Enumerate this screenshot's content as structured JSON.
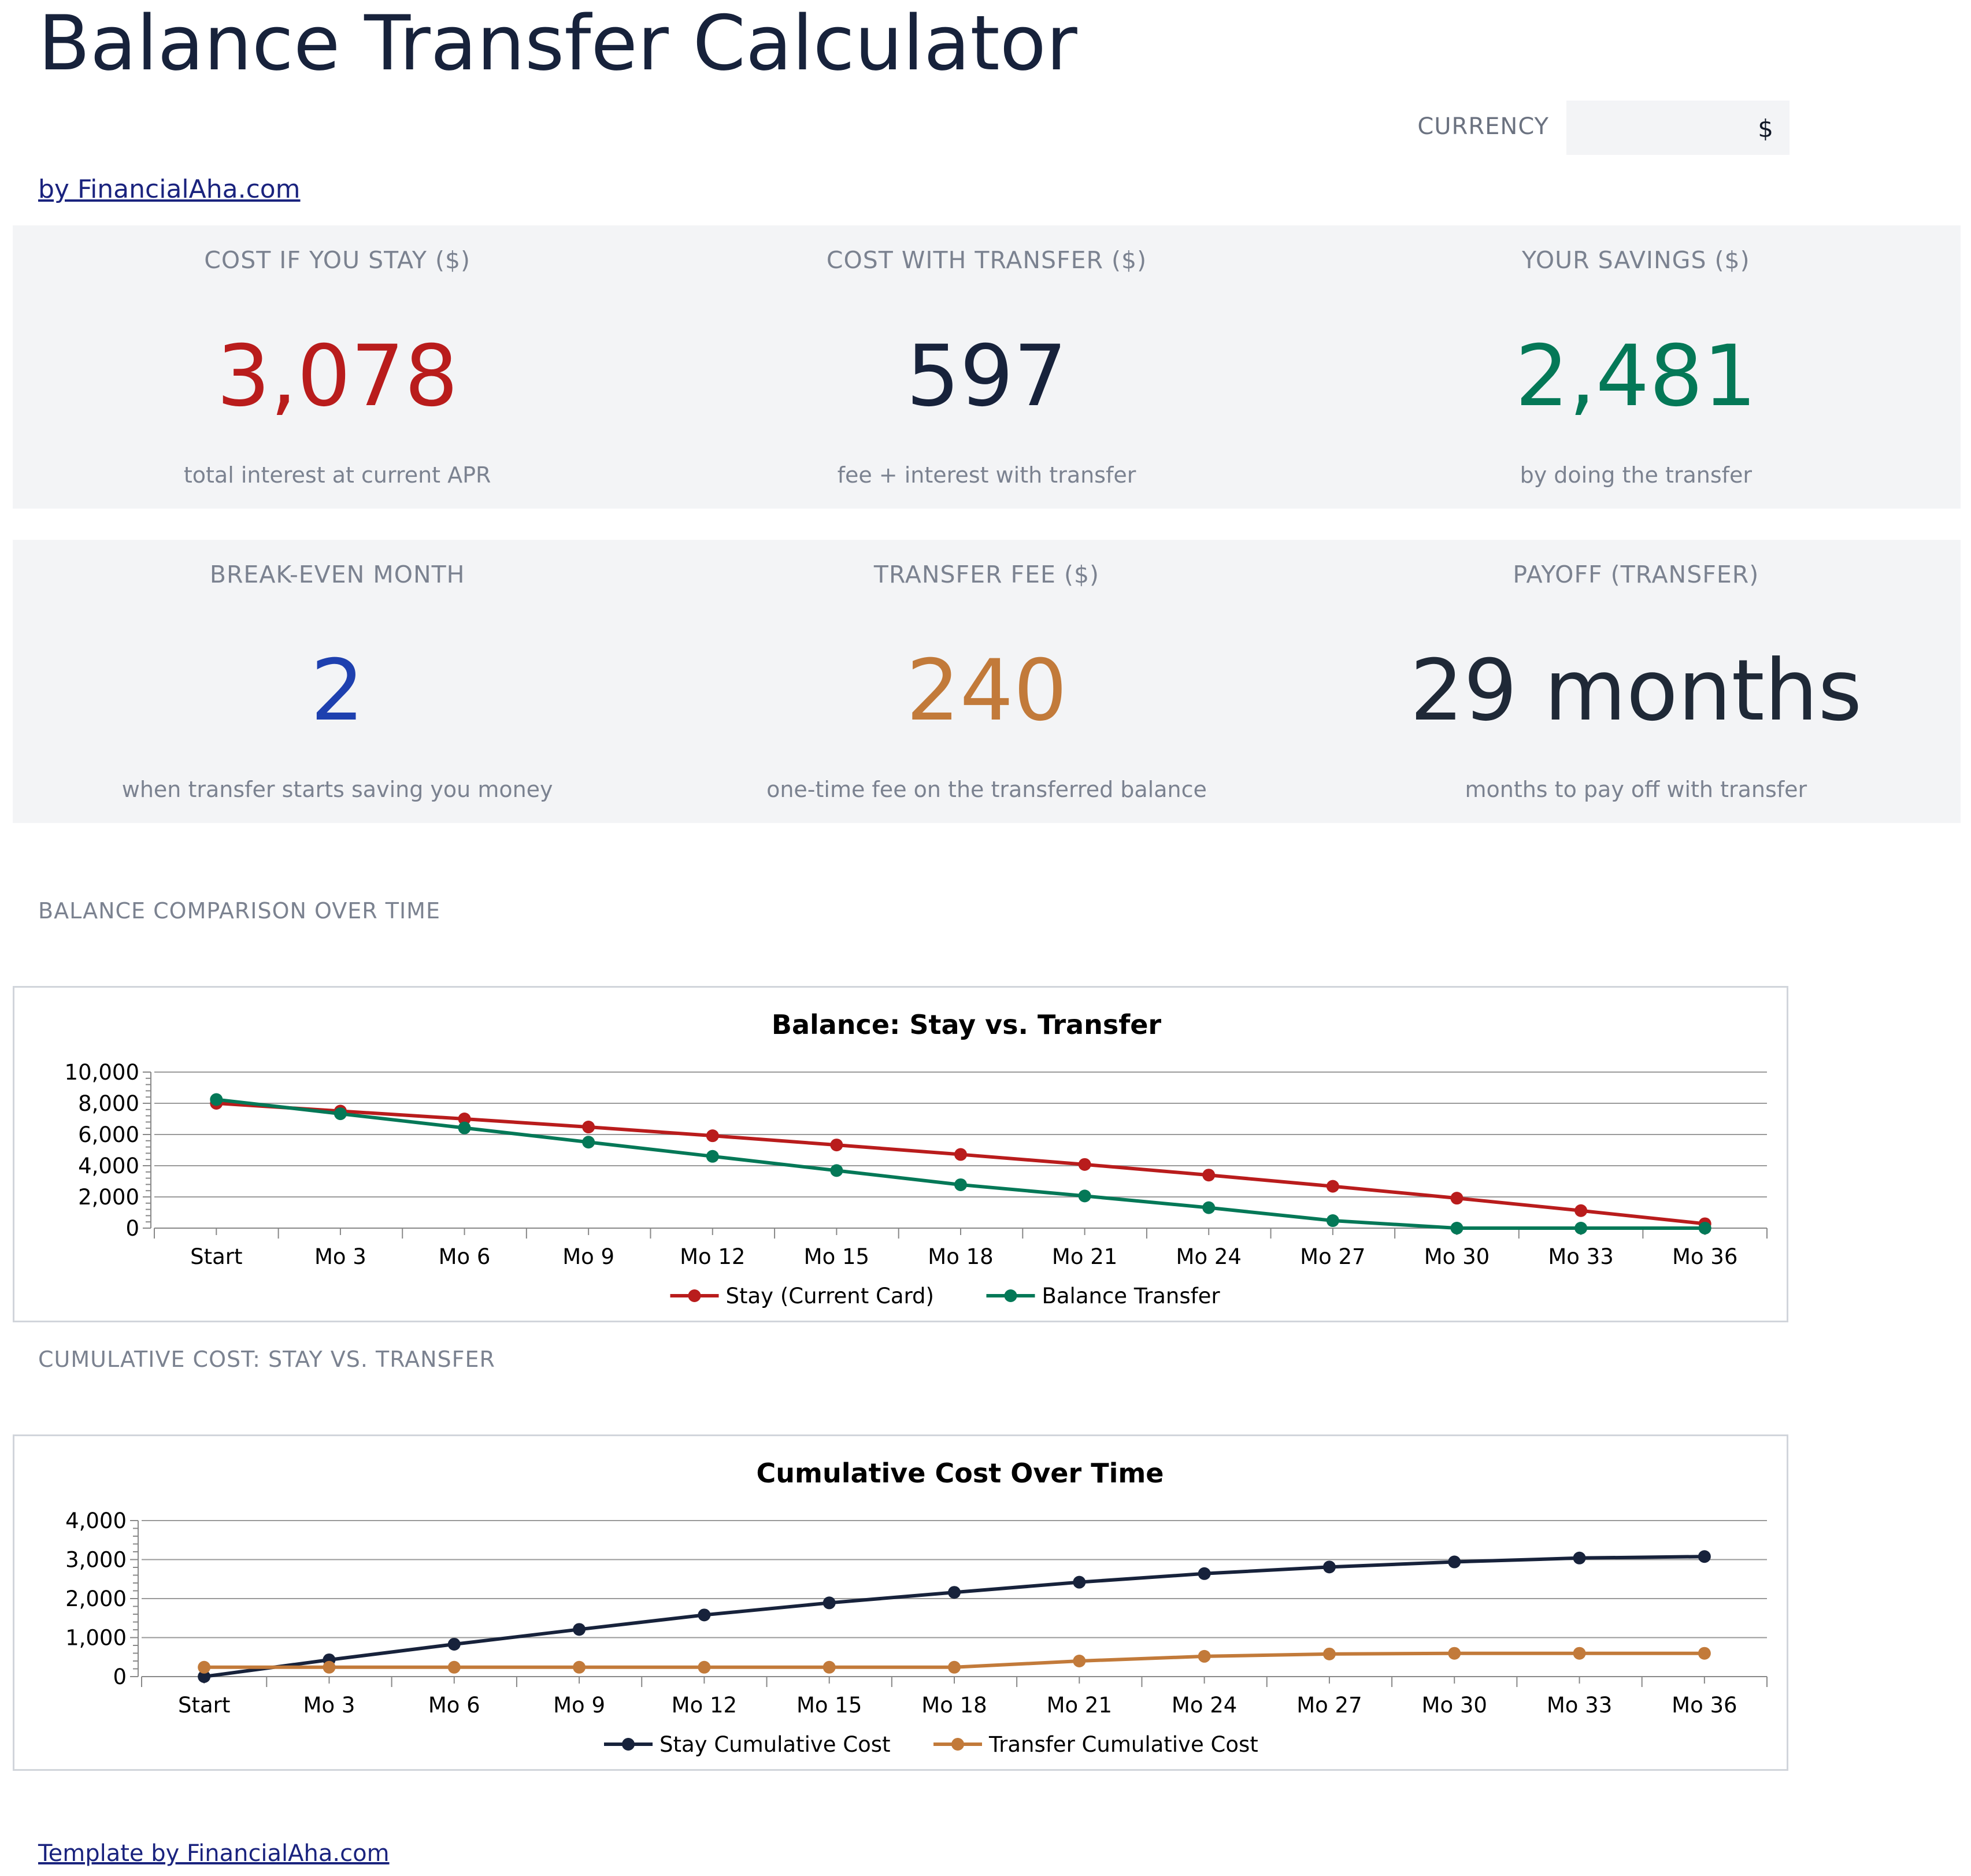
{
  "page": {
    "title": "Balance Transfer Calculator",
    "byline": "by FinancialAha.com",
    "footer": "Template by FinancialAha.com"
  },
  "currency": {
    "label": "CURRENCY",
    "value": "$"
  },
  "kpis_row1": [
    {
      "label": "COST IF YOU STAY ($)",
      "value": "3,078",
      "note": "total interest at current APR",
      "color": "#b91c1c"
    },
    {
      "label": "COST WITH TRANSFER ($)",
      "value": "597",
      "note": "fee + interest with transfer",
      "color": "#17223b"
    },
    {
      "label": "YOUR SAVINGS ($)",
      "value": "2,481",
      "note": "by doing the transfer",
      "color": "#047857"
    }
  ],
  "kpis_row2": [
    {
      "label": "BREAK-EVEN MONTH",
      "value": "2",
      "note": "when transfer starts saving you money",
      "color": "#1e40af"
    },
    {
      "label": "TRANSFER FEE ($)",
      "value": "240",
      "note": "one-time fee on the transferred balance",
      "color": "#c27a3a"
    },
    {
      "label": "PAYOFF (TRANSFER)",
      "value": "29 months",
      "note": "months to pay off with transfer",
      "color": "#1f2937"
    }
  ],
  "sections": {
    "balance": "BALANCE COMPARISON OVER TIME",
    "cumulative": "CUMULATIVE COST: STAY VS. TRANSFER"
  },
  "chart_data": [
    {
      "type": "line",
      "title": "Balance: Stay vs. Transfer",
      "categories": [
        "Start",
        "Mo 3",
        "Mo 6",
        "Mo 9",
        "Mo 12",
        "Mo 15",
        "Mo 18",
        "Mo 21",
        "Mo 24",
        "Mo 27",
        "Mo 30",
        "Mo 33",
        "Mo 36"
      ],
      "yticks": [
        "0",
        "2,000",
        "4,000",
        "6,000",
        "8,000",
        "10,000"
      ],
      "ylim": [
        0,
        10000
      ],
      "grid": true,
      "legend": "bottom",
      "series": [
        {
          "name": "Stay (Current Card)",
          "color": "#b91c1c",
          "values": [
            8000,
            7500,
            7000,
            6480,
            5920,
            5330,
            4720,
            4080,
            3400,
            2680,
            1920,
            1120,
            280
          ]
        },
        {
          "name": "Balance Transfer",
          "color": "#047857",
          "values": [
            8240,
            7330,
            6420,
            5510,
            4600,
            3690,
            2780,
            2060,
            1310,
            480,
            0,
            0,
            0
          ]
        }
      ]
    },
    {
      "type": "line",
      "title": "Cumulative Cost Over Time",
      "categories": [
        "Start",
        "Mo 3",
        "Mo 6",
        "Mo 9",
        "Mo 12",
        "Mo 15",
        "Mo 18",
        "Mo 21",
        "Mo 24",
        "Mo 27",
        "Mo 30",
        "Mo 33",
        "Mo 36"
      ],
      "yticks": [
        "0",
        "1,000",
        "2,000",
        "3,000",
        "4,000"
      ],
      "ylim": [
        0,
        4000
      ],
      "grid": true,
      "legend": "bottom",
      "series": [
        {
          "name": "Stay Cumulative Cost",
          "color": "#17223b",
          "values": [
            0,
            430,
            830,
            1210,
            1580,
            1890,
            2160,
            2420,
            2640,
            2810,
            2940,
            3040,
            3078
          ]
        },
        {
          "name": "Transfer Cumulative Cost",
          "color": "#c27a3a",
          "values": [
            240,
            240,
            240,
            240,
            240,
            240,
            240,
            400,
            520,
            580,
            597,
            597,
            597
          ]
        }
      ]
    }
  ]
}
